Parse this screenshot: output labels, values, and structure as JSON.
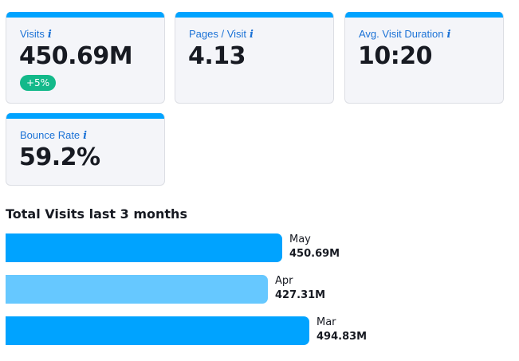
{
  "metrics": [
    {
      "label": "Visits",
      "value": "450.69M",
      "badge": "+5%"
    },
    {
      "label": "Pages / Visit",
      "value": "4.13"
    },
    {
      "label": "Avg. Visit Duration",
      "value": "10:20"
    },
    {
      "label": "Bounce Rate",
      "value": "59.2%"
    }
  ],
  "info_icon": "i",
  "colors": {
    "accent": "#00a3ff",
    "light": "#66c8ff",
    "badge": "#13b98a"
  },
  "chart_data": {
    "type": "bar",
    "title": "Total Visits last 3 months",
    "categories": [
      "May",
      "Apr",
      "Mar"
    ],
    "values": [
      450.69,
      427.31,
      494.83
    ],
    "labels": [
      "450.69M",
      "427.31M",
      "494.83M"
    ]
  }
}
